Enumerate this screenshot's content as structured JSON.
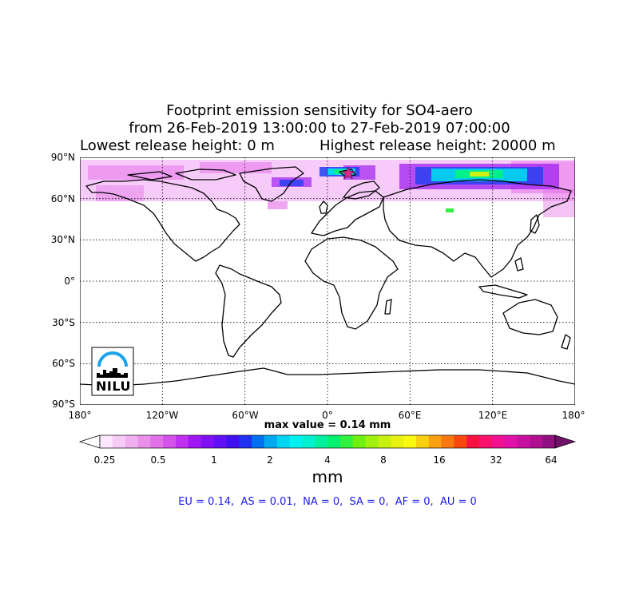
{
  "header": {
    "title_line1": "Footprint emission sensitivity for SO4-aero",
    "title_line2": "from 26-Feb-2019 13:00:00 to 27-Feb-2019 07:00:00",
    "lowest_release": "Lowest release height: 0 m",
    "highest_release": "Highest release height: 20000 m"
  },
  "map": {
    "projection": "equirectangular",
    "lon_range": [
      -180,
      180
    ],
    "lat_range": [
      -90,
      90
    ],
    "grid": "dotted",
    "lat_labels": [
      "90°N",
      "60°N",
      "30°N",
      "0°",
      "30°S",
      "60°S",
      "90°S"
    ],
    "lon_labels": [
      "180°",
      "120°W",
      "60°W",
      "0°",
      "60°E",
      "120°E",
      "180°"
    ],
    "release_marker": {
      "shape": "star",
      "lon": 17,
      "lat": 78,
      "color": "#d62c8a"
    },
    "footprint_regions": [
      {
        "name": "arctic-europe-siberia",
        "lon": [
          60,
          160
        ],
        "lat": [
          60,
          85
        ]
      },
      {
        "name": "svalbard-barents",
        "lon": [
          0,
          25
        ],
        "lat": [
          75,
          82
        ]
      },
      {
        "name": "greenland-north-atlantic",
        "lon": [
          -40,
          5
        ],
        "lat": [
          68,
          80
        ]
      },
      {
        "name": "arctic-fringe",
        "lon": [
          -180,
          180
        ],
        "lat": [
          55,
          90
        ]
      }
    ]
  },
  "max_value": "max value = 0.14 mm",
  "colorbar": {
    "ticks": [
      "0.25",
      "0.5",
      "1",
      "2",
      "4",
      "8",
      "16",
      "32",
      "64"
    ],
    "unit": "mm",
    "colors": [
      "#ffffff",
      "#fbe6fb",
      "#f6ccf6",
      "#f0b0f0",
      "#ea90ea",
      "#e270e6",
      "#d452ea",
      "#c030f0",
      "#a016f4",
      "#8010f4",
      "#6010f4",
      "#4010f0",
      "#2030f0",
      "#0070f0",
      "#00a8f0",
      "#00d4f0",
      "#00f0f0",
      "#00f0d0",
      "#00f0a0",
      "#00f070",
      "#30f040",
      "#70f010",
      "#a0f010",
      "#c8f010",
      "#e8f010",
      "#f8f810",
      "#f8d010",
      "#f8a010",
      "#f87810",
      "#f84810",
      "#f81040",
      "#f8106a",
      "#f01090",
      "#e010a8",
      "#c810a0",
      "#b01090",
      "#901080",
      "#701068"
    ]
  },
  "logo": {
    "text": "NILU"
  },
  "regional_summary": "EU = 0.14,  AS = 0.01,  NA = 0,  SA = 0,  AF = 0,  AU = 0"
}
